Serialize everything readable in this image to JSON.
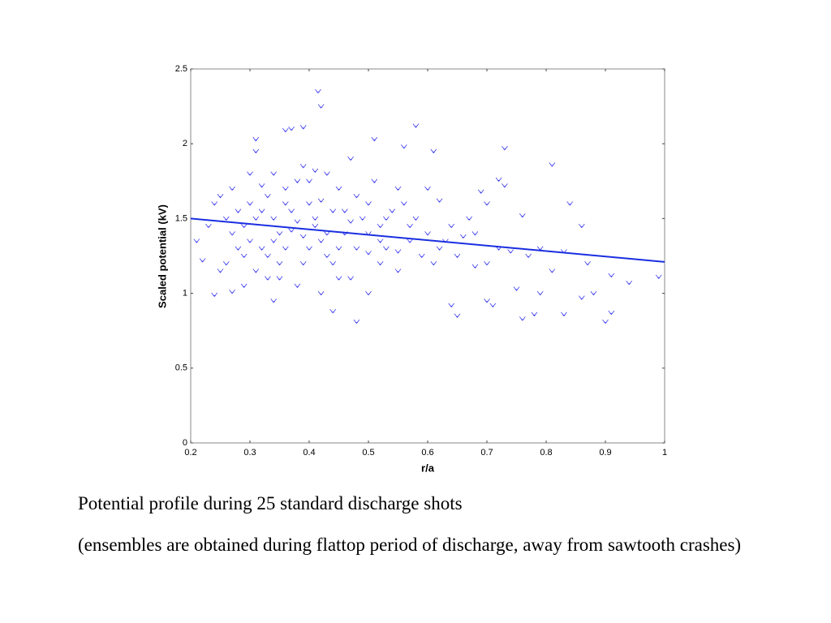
{
  "chart_data": {
    "type": "scatter",
    "xlabel": "r/a",
    "ylabel": "Scaled potential (kV)",
    "xlim": [
      0.2,
      1
    ],
    "ylim": [
      0,
      2.5
    ],
    "xticks": [
      0.2,
      0.3,
      0.4,
      0.5,
      0.6,
      0.7,
      0.8,
      0.9,
      1
    ],
    "yticks": [
      0,
      0.5,
      1,
      1.5,
      2,
      2.5
    ],
    "series": [
      {
        "color": "#3a3af0",
        "x": [
          0.415,
          0.42,
          0.39,
          0.36,
          0.37,
          0.31,
          0.31,
          0.58,
          0.51,
          0.56,
          0.61,
          0.73,
          0.81,
          0.76,
          0.84,
          0.86,
          0.99,
          0.94,
          0.91,
          0.9,
          0.83,
          0.86,
          0.76,
          0.78,
          0.44,
          0.48,
          0.34,
          0.24,
          0.27,
          0.7,
          0.71,
          0.64,
          0.65,
          0.75,
          0.79,
          0.88,
          0.87,
          0.91,
          0.81,
          0.7,
          0.72,
          0.68,
          0.69,
          0.7,
          0.73,
          0.72,
          0.6,
          0.62,
          0.58,
          0.6,
          0.63,
          0.65,
          0.61,
          0.55,
          0.52,
          0.5,
          0.45,
          0.42,
          0.38,
          0.33,
          0.29,
          0.25,
          0.22,
          0.21,
          0.23,
          0.24,
          0.25,
          0.27,
          0.28,
          0.29,
          0.3,
          0.3,
          0.32,
          0.33,
          0.34,
          0.35,
          0.36,
          0.37,
          0.38,
          0.39,
          0.4,
          0.41,
          0.42,
          0.43,
          0.44,
          0.45,
          0.46,
          0.47,
          0.48,
          0.49,
          0.5,
          0.51,
          0.52,
          0.53,
          0.54,
          0.55,
          0.56,
          0.57,
          0.59,
          0.62,
          0.64,
          0.66,
          0.67,
          0.68,
          0.74,
          0.77,
          0.79,
          0.83,
          0.47,
          0.5,
          0.31,
          0.32,
          0.34,
          0.36,
          0.37,
          0.39,
          0.4,
          0.41,
          0.43,
          0.44,
          0.46,
          0.48,
          0.28,
          0.27,
          0.26,
          0.3,
          0.33,
          0.35,
          0.38,
          0.42,
          0.4,
          0.36,
          0.34,
          0.32,
          0.29,
          0.31,
          0.45,
          0.5,
          0.53,
          0.57,
          0.43,
          0.41,
          0.55,
          0.35,
          0.39,
          0.26,
          0.52,
          0.47
        ],
        "values": [
          2.35,
          2.25,
          2.11,
          2.09,
          2.1,
          2.03,
          1.95,
          2.12,
          2.03,
          1.98,
          1.95,
          1.97,
          1.86,
          1.52,
          1.6,
          1.45,
          1.11,
          1.07,
          0.87,
          0.81,
          0.86,
          0.97,
          0.83,
          0.86,
          0.88,
          0.81,
          0.95,
          0.99,
          1.01,
          0.95,
          0.92,
          0.92,
          0.85,
          1.03,
          1.0,
          1.0,
          1.2,
          1.12,
          1.15,
          1.2,
          1.3,
          1.4,
          1.68,
          1.6,
          1.72,
          1.76,
          1.7,
          1.62,
          1.5,
          1.4,
          1.35,
          1.25,
          1.2,
          1.15,
          1.2,
          1.0,
          1.1,
          1.0,
          1.05,
          1.1,
          1.05,
          1.15,
          1.22,
          1.35,
          1.45,
          1.6,
          1.65,
          1.7,
          1.55,
          1.45,
          1.35,
          1.8,
          1.72,
          1.65,
          1.5,
          1.4,
          1.3,
          1.55,
          1.75,
          1.85,
          1.6,
          1.45,
          1.35,
          1.25,
          1.55,
          1.7,
          1.4,
          1.9,
          1.3,
          1.5,
          1.6,
          1.75,
          1.45,
          1.3,
          1.55,
          1.28,
          1.6,
          1.35,
          1.25,
          1.3,
          1.45,
          1.38,
          1.5,
          1.18,
          1.28,
          1.25,
          1.3,
          1.28,
          1.1,
          1.4,
          1.5,
          1.3,
          1.35,
          1.6,
          1.42,
          1.38,
          1.3,
          1.5,
          1.4,
          1.2,
          1.55,
          1.65,
          1.3,
          1.4,
          1.2,
          1.6,
          1.25,
          1.2,
          1.48,
          1.62,
          1.75,
          1.7,
          1.8,
          1.55,
          1.25,
          1.15,
          1.3,
          1.27,
          1.5,
          1.45,
          1.8,
          1.82,
          1.7,
          1.1,
          1.2,
          1.5,
          1.35,
          1.48
        ]
      }
    ],
    "fit_line": {
      "color": "#1a2ee0",
      "x": [
        0.2,
        1
      ],
      "values": [
        1.5,
        1.21
      ]
    }
  },
  "caption": {
    "line1": "Potential profile during 25 standard discharge shots",
    "line2": "(ensembles are obtained during flattop period of discharge, away from sawtooth crashes)"
  }
}
